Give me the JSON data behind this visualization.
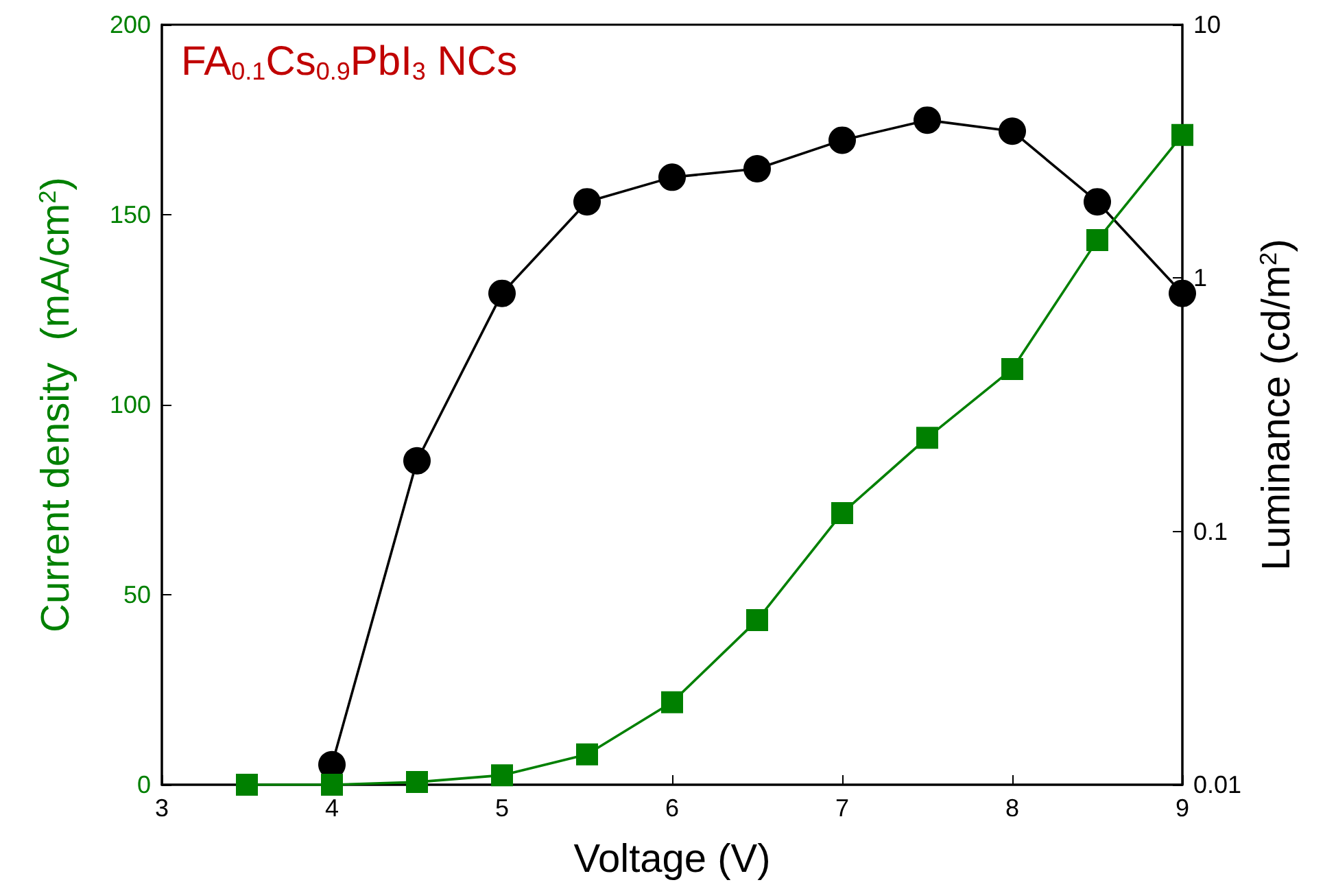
{
  "chart_data": {
    "type": "line",
    "annotations": [
      "FA$_{0.1}$Cs$_{0.9}$PbI$_{3}$ NCs"
    ],
    "xlabel": "Voltage (V)",
    "ylabel": "Current density  (mA/cm$^{2}$)",
    "y2label": "Luminance (cd/m$^{2}$)",
    "x": [
      3.5,
      4,
      4.5,
      5,
      5.5,
      6,
      6.5,
      7,
      7.5,
      8,
      8.5,
      9
    ],
    "series": [
      {
        "color": "#008000",
        "marker": "square",
        "values": [
          0,
          0,
          0.7,
          2.5,
          8,
          21.7,
          43.3,
          71.5,
          91.3,
          109.4,
          143.3,
          171
        ]
      },
      {
        "color": "#000000",
        "marker": "circle",
        "axis": "y2",
        "x": [
          4,
          4.5,
          5,
          5.5,
          6,
          6.5,
          7,
          7.5,
          8,
          8.5,
          9
        ],
        "values": [
          0.012,
          0.19,
          0.87,
          2.0,
          2.5,
          2.7,
          3.5,
          4.2,
          3.8,
          2.0,
          0.87
        ]
      }
    ],
    "xlim": [
      3,
      9
    ],
    "xticks": [
      3,
      4,
      5,
      6,
      7,
      8,
      9
    ],
    "ylim": [
      0,
      200
    ],
    "yticks": [
      0,
      50,
      100,
      150,
      200
    ],
    "y2lim": [
      0.01,
      10
    ],
    "y2ticks": [
      0.01,
      0.1,
      1,
      10
    ],
    "log": "y2",
    "grid": false
  }
}
